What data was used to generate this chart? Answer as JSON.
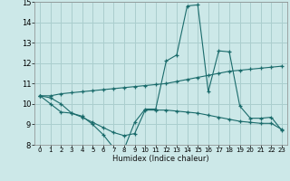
{
  "xlabel": "Humidex (Indice chaleur)",
  "xlim": [
    -0.5,
    23.5
  ],
  "ylim": [
    8,
    15
  ],
  "xticks": [
    0,
    1,
    2,
    3,
    4,
    5,
    6,
    7,
    8,
    9,
    10,
    11,
    12,
    13,
    14,
    15,
    16,
    17,
    18,
    19,
    20,
    21,
    22,
    23
  ],
  "yticks": [
    8,
    9,
    10,
    11,
    12,
    13,
    14,
    15
  ],
  "background_color": "#cce8e8",
  "grid_color": "#aacece",
  "line_color": "#1a6b6b",
  "line1_y": [
    10.4,
    10.4,
    10.5,
    10.55,
    10.6,
    10.65,
    10.7,
    10.75,
    10.8,
    10.85,
    10.9,
    10.95,
    11.0,
    11.1,
    11.2,
    11.3,
    11.4,
    11.5,
    11.6,
    11.65,
    11.7,
    11.75,
    11.8,
    11.85
  ],
  "line2_y": [
    10.4,
    10.0,
    9.6,
    9.55,
    9.4,
    9.0,
    8.5,
    7.85,
    7.8,
    9.1,
    9.75,
    9.75,
    12.1,
    12.4,
    14.8,
    14.85,
    10.6,
    12.6,
    12.55,
    9.9,
    9.3,
    9.3,
    9.35,
    8.7
  ],
  "line3_y": [
    10.4,
    10.3,
    10.0,
    9.55,
    9.35,
    9.1,
    8.85,
    8.6,
    8.45,
    8.55,
    9.7,
    9.7,
    9.7,
    9.65,
    9.6,
    9.55,
    9.45,
    9.35,
    9.25,
    9.15,
    9.1,
    9.05,
    9.05,
    8.75
  ]
}
